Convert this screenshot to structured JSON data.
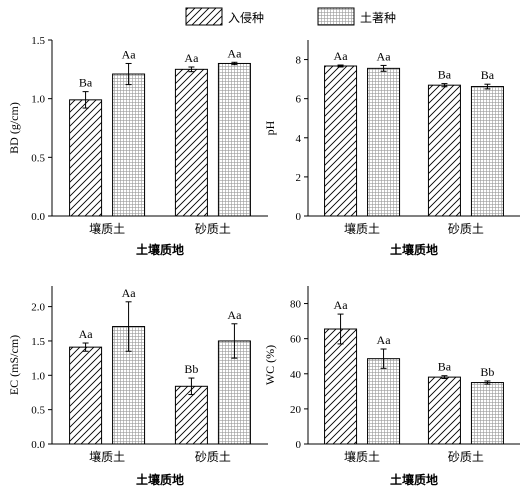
{
  "legend": [
    {
      "name": "入侵种",
      "pattern": "hatch"
    },
    {
      "name": "土著种",
      "pattern": "dots"
    }
  ],
  "chart_data": [
    {
      "type": "bar",
      "categories": [
        "壤质土",
        "砂质土"
      ],
      "series": [
        {
          "name": "入侵种",
          "values": [
            0.99,
            1.25
          ],
          "errors": [
            0.07,
            0.02
          ],
          "labels": [
            "Ba",
            "Aa"
          ]
        },
        {
          "name": "土著种",
          "values": [
            1.21,
            1.3
          ],
          "errors": [
            0.09,
            0.01
          ],
          "labels": [
            "Aa",
            "Aa"
          ]
        }
      ],
      "xlabel": "土壤质地",
      "ylabel": "BD (g/cm)",
      "ylim": [
        0,
        1.5
      ],
      "yticks": [
        "0.0",
        "0.5",
        "1.0",
        "1.5"
      ]
    },
    {
      "type": "bar",
      "categories": [
        "壤质土",
        "砂质土"
      ],
      "series": [
        {
          "name": "入侵种",
          "values": [
            7.67,
            6.69
          ],
          "errors": [
            0.05,
            0.08
          ],
          "labels": [
            "Aa",
            "Ba"
          ]
        },
        {
          "name": "土著种",
          "values": [
            7.55,
            6.62
          ],
          "errors": [
            0.15,
            0.12
          ],
          "labels": [
            "Aa",
            "Ba"
          ]
        }
      ],
      "xlabel": "土壤质地",
      "ylabel": "pH",
      "ylim": [
        0,
        9
      ],
      "yticks": [
        "0",
        "2",
        "4",
        "6",
        "8"
      ]
    },
    {
      "type": "bar",
      "categories": [
        "壤质土",
        "砂质土"
      ],
      "series": [
        {
          "name": "入侵种",
          "values": [
            1.41,
            0.84
          ],
          "errors": [
            0.06,
            0.12
          ],
          "labels": [
            "Aa",
            "Bb"
          ]
        },
        {
          "name": "土著种",
          "values": [
            1.71,
            1.5
          ],
          "errors": [
            0.36,
            0.25
          ],
          "labels": [
            "Aa",
            "Aa"
          ]
        }
      ],
      "xlabel": "土壤质地",
      "ylabel": "EC (mS/cm)",
      "ylim": [
        0,
        2.3
      ],
      "yticks": [
        "0.0",
        "0.5",
        "1.0",
        "1.5",
        "2.0"
      ]
    },
    {
      "type": "bar",
      "categories": [
        "壤质土",
        "砂质土"
      ],
      "series": [
        {
          "name": "入侵种",
          "values": [
            65.5,
            38.1
          ],
          "errors": [
            8.5,
            0.8
          ],
          "labels": [
            "Aa",
            "Ba"
          ]
        },
        {
          "name": "土著种",
          "values": [
            48.6,
            35.0
          ],
          "errors": [
            5.5,
            0.9
          ],
          "labels": [
            "Aa",
            "Bb"
          ]
        }
      ],
      "xlabel": "土壤质地",
      "ylabel": "WC (%)",
      "ylim": [
        0,
        90
      ],
      "yticks": [
        "0",
        "20",
        "40",
        "60",
        "80"
      ]
    }
  ]
}
